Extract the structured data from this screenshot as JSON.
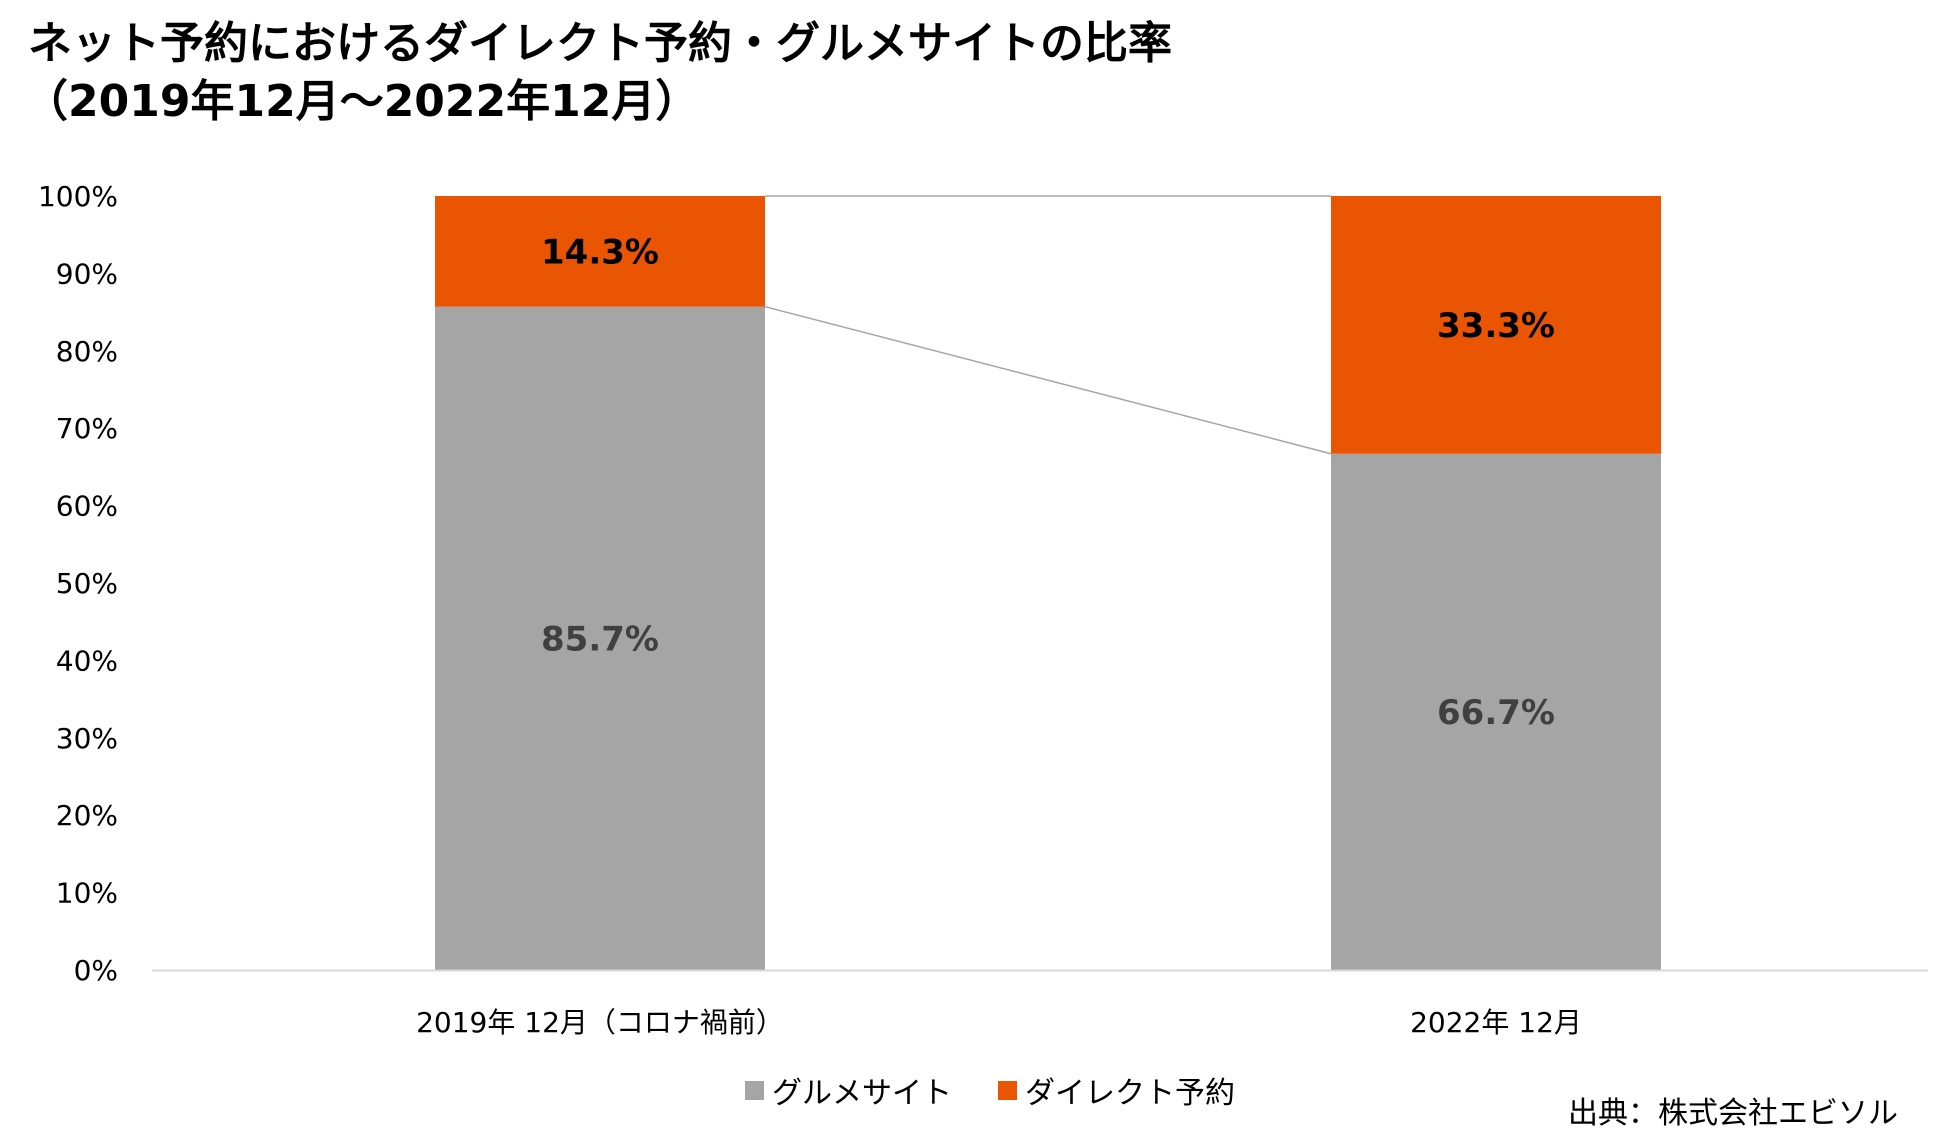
{
  "chart_data": {
    "type": "bar",
    "stacked": true,
    "title": "ネット予約におけるダイレクト予約・グルメサイトの比率",
    "subtitle": "（2019年12月～2022年12月）",
    "categories": [
      "2019年 12月（コロナ禍前）",
      "2022年 12月"
    ],
    "series": [
      {
        "name": "グルメサイト",
        "color": "#a5a5a5",
        "label_color": "#404040",
        "values": [
          85.7,
          66.7
        ],
        "labels": [
          "85.7%",
          "66.7%"
        ]
      },
      {
        "name": "ダイレクト予約",
        "color": "#ea5504",
        "label_color": "#000000",
        "values": [
          14.3,
          33.3
        ],
        "labels": [
          "14.3%",
          "33.3%"
        ]
      }
    ],
    "ylim": [
      0,
      100
    ],
    "yticks": [
      0,
      10,
      20,
      30,
      40,
      50,
      60,
      70,
      80,
      90,
      100
    ],
    "ytick_labels": [
      "0%",
      "10%",
      "20%",
      "30%",
      "40%",
      "50%",
      "60%",
      "70%",
      "80%",
      "90%",
      "100%"
    ],
    "xlabel": "",
    "ylabel": "",
    "series_lines": true,
    "grid": false,
    "legend": "bottom"
  },
  "source": "出典：株式会社エビソル"
}
